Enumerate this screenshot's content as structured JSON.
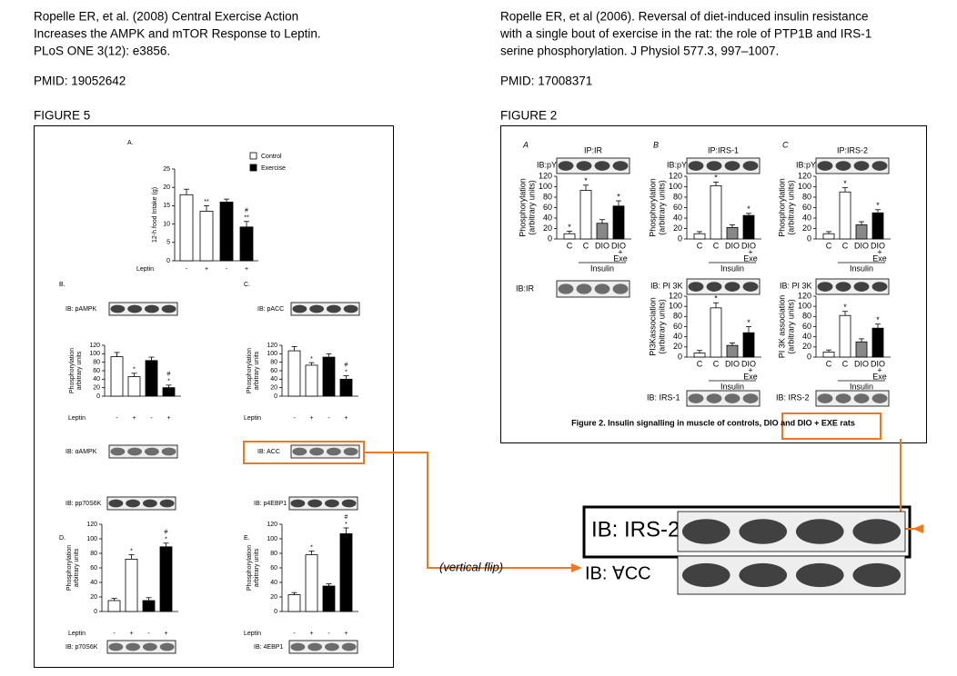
{
  "left": {
    "citation": [
      "Ropelle ER, et al. (2008) Central Exercise Action",
      "Increases the AMPK and mTOR Response to Leptin.",
      "PLoS ONE 3(12): e3856."
    ],
    "pmid": "PMID: 19052642",
    "figure": "FIGURE 5"
  },
  "right": {
    "citation": [
      "Ropelle ER, et al (2006). Reversal of diet-induced insulin resistance",
      "with a single bout of exercise in the rat: the role of PTP1B and IRS-1",
      "serine phosphorylation. J Physiol 577.3, 997–1007."
    ],
    "pmid": "PMID: 17008371",
    "figure": "FIGURE 2"
  },
  "figure5": {
    "legend": [
      {
        "name": "Control",
        "color": "#ffffff"
      },
      {
        "name": "Exercise",
        "color": "#000000"
      }
    ],
    "panels": [
      {
        "label": "A.",
        "chart": {
          "ylabel": [
            "12-h food Intake (g)"
          ],
          "ylim": [
            0,
            25
          ],
          "yticks": [
            0,
            5,
            10,
            15,
            20,
            25
          ],
          "values": [
            18,
            13.5,
            16,
            9.2
          ],
          "errors": [
            1.5,
            1.5,
            0.8,
            1.5
          ],
          "colors": [
            "#ffffff",
            "#ffffff",
            "#000000",
            "#000000"
          ],
          "annotations": [
            null,
            [
              "**"
            ],
            null,
            [
              "#",
              "**"
            ]
          ],
          "row_label": "Leptin",
          "row": [
            "-",
            "+",
            "-",
            "+"
          ]
        }
      },
      {
        "label": "B.",
        "blot_top": "IB: pAMPK",
        "blot_bottom": "IB: αAMPK",
        "chart": {
          "ylabel": [
            "Phosphorylation",
            "arbitrary units"
          ],
          "ylim": [
            0,
            120
          ],
          "yticks": [
            0,
            20,
            40,
            60,
            80,
            100,
            120
          ],
          "values": [
            93,
            46,
            84,
            20
          ],
          "errors": [
            10,
            8,
            8,
            6
          ],
          "colors": [
            "#ffffff",
            "#ffffff",
            "#000000",
            "#000000"
          ],
          "annotations": [
            null,
            [
              "*"
            ],
            null,
            [
              "#",
              "*"
            ]
          ],
          "row_label": "Leptin",
          "row": [
            "-",
            "+",
            "-",
            "+"
          ]
        }
      },
      {
        "label": "C.",
        "blot_top": "IB: pACC",
        "blot_bottom": "IB: ACC",
        "chart": {
          "ylabel": [
            "Phosphorylation",
            "arbitrary units"
          ],
          "ylim": [
            0,
            120
          ],
          "yticks": [
            0,
            20,
            40,
            60,
            80,
            100,
            120
          ],
          "values": [
            107,
            73,
            92,
            40
          ],
          "errors": [
            10,
            6,
            8,
            8
          ],
          "colors": [
            "#ffffff",
            "#ffffff",
            "#000000",
            "#000000"
          ],
          "annotations": [
            null,
            [
              "*"
            ],
            null,
            [
              "#",
              "*"
            ]
          ],
          "row_label": "Leptin",
          "row": [
            "-",
            "+",
            "-",
            "+"
          ]
        }
      },
      {
        "label": "D.",
        "blot_top": "IB: pp70S6K",
        "blot_bottom": "IB: p70S6K",
        "chart": {
          "ylabel": [
            "Phosphorylation",
            "arbitrary units"
          ],
          "ylim": [
            0,
            120
          ],
          "yticks": [
            0,
            20,
            40,
            60,
            80,
            100,
            120
          ],
          "values": [
            15,
            72,
            15,
            89
          ],
          "errors": [
            3,
            6,
            4,
            5
          ],
          "colors": [
            "#ffffff",
            "#ffffff",
            "#000000",
            "#000000"
          ],
          "annotations": [
            null,
            [
              "*"
            ],
            null,
            [
              "#",
              "*"
            ]
          ],
          "row_label": "Leptin",
          "row": [
            "-",
            "+",
            "-",
            "+"
          ]
        }
      },
      {
        "label": "E.",
        "blot_top": "IB: p4EBP1",
        "blot_bottom": "IB: 4EBP1",
        "chart": {
          "ylabel": [
            "Phosphorylation",
            "arbitrary units"
          ],
          "ylim": [
            0,
            120
          ],
          "yticks": [
            0,
            20,
            40,
            60,
            80,
            100,
            120
          ],
          "values": [
            23,
            78,
            35,
            107
          ],
          "errors": [
            3,
            5,
            3,
            8
          ],
          "colors": [
            "#ffffff",
            "#ffffff",
            "#000000",
            "#000000"
          ],
          "annotations": [
            null,
            [
              "*"
            ],
            null,
            [
              "#",
              "*"
            ]
          ],
          "row_label": "Leptin",
          "row": [
            "-",
            "+",
            "-",
            "+"
          ]
        }
      }
    ]
  },
  "figure2": {
    "caption": "Figure 2.  Insulin signalling in muscle of controls, DIO and DIO + EXE rats",
    "panels": [
      {
        "label": "A",
        "ip": "IP:IR",
        "blot_top": "IB:pY",
        "chart": {
          "ylabel": [
            "Phosphorylation",
            "(arbitrary units)"
          ],
          "ylim": [
            0,
            120
          ],
          "yticks": [
            0,
            20,
            40,
            60,
            80,
            100,
            120
          ],
          "values": [
            10,
            93,
            30,
            63
          ],
          "errors": [
            5,
            10,
            7,
            10
          ],
          "colors": [
            "#ffffff",
            "#ffffff",
            "#888888",
            "#000000"
          ],
          "annotations": [
            [
              "*"
            ],
            [
              "*"
            ],
            null,
            [
              "*"
            ]
          ],
          "categories": [
            [
              "C"
            ],
            [
              "C"
            ],
            [
              "DIO"
            ],
            [
              "DIO",
              "+",
              "Exe"
            ]
          ],
          "group_label": "Insulin"
        },
        "lower_blot": "IB:IR"
      },
      {
        "label": "B",
        "ip": "IP:IRS-1",
        "blot_top": "IB:pY",
        "chart": {
          "ylabel": [
            "Phosphorylation",
            "(arbitrary units)"
          ],
          "ylim": [
            0,
            120
          ],
          "yticks": [
            0,
            20,
            40,
            60,
            80,
            100,
            120
          ],
          "values": [
            10,
            102,
            22,
            45
          ],
          "errors": [
            4,
            7,
            5,
            4
          ],
          "colors": [
            "#ffffff",
            "#ffffff",
            "#888888",
            "#000000"
          ],
          "annotations": [
            null,
            [
              "*"
            ],
            null,
            [
              "*"
            ]
          ],
          "categories": [
            [
              "C"
            ],
            [
              "C"
            ],
            [
              "DIO"
            ],
            [
              "DIO",
              "+",
              "Exe"
            ]
          ],
          "group_label": "Insulin"
        },
        "lower": {
          "blot_top": "IB: PI 3K",
          "blot_bottom": "IB: IRS-1",
          "chart": {
            "ylabel": [
              "PI3Kassociation",
              "(arbitrary units)"
            ],
            "ylim": [
              0,
              120
            ],
            "yticks": [
              0,
              20,
              40,
              60,
              80,
              100,
              120
            ],
            "values": [
              8,
              97,
              23,
              48
            ],
            "errors": [
              5,
              10,
              5,
              12
            ],
            "colors": [
              "#ffffff",
              "#ffffff",
              "#888888",
              "#000000"
            ],
            "annotations": [
              null,
              [
                "*"
              ],
              null,
              [
                "*"
              ]
            ],
            "categories": [
              [
                "C"
              ],
              [
                "C"
              ],
              [
                "DIO"
              ],
              [
                "DIO",
                "+",
                "Exe"
              ]
            ],
            "group_label": "Insulin"
          }
        }
      },
      {
        "label": "C",
        "ip": "IP:IRS-2",
        "blot_top": "IB:pY",
        "chart": {
          "ylabel": [
            "Phosphorylation",
            "(arbitrary units)"
          ],
          "ylim": [
            0,
            120
          ],
          "yticks": [
            0,
            20,
            40,
            60,
            80,
            100,
            120
          ],
          "values": [
            10,
            90,
            27,
            50
          ],
          "errors": [
            4,
            8,
            6,
            6
          ],
          "colors": [
            "#ffffff",
            "#ffffff",
            "#888888",
            "#000000"
          ],
          "annotations": [
            null,
            [
              "*"
            ],
            null,
            [
              "*"
            ]
          ],
          "categories": [
            [
              "C"
            ],
            [
              "C"
            ],
            [
              "DIO"
            ],
            [
              "DIO",
              "+",
              "Exe"
            ]
          ],
          "group_label": "Insulin"
        },
        "lower": {
          "blot_top": "IB: PI 3K",
          "blot_bottom": "IB: IRS-2",
          "chart": {
            "ylabel": [
              "PI 3K association",
              "(arbitrary units)"
            ],
            "ylim": [
              0,
              120
            ],
            "yticks": [
              0,
              20,
              40,
              60,
              80,
              100,
              120
            ],
            "values": [
              10,
              82,
              30,
              57
            ],
            "errors": [
              4,
              8,
              6,
              8
            ],
            "colors": [
              "#ffffff",
              "#ffffff",
              "#888888",
              "#000000"
            ],
            "annotations": [
              null,
              [
                "*"
              ],
              null,
              [
                "*"
              ]
            ],
            "categories": [
              [
                "C"
              ],
              [
                "C"
              ],
              [
                "DIO"
              ],
              [
                "DIO",
                "+",
                "Exe"
              ]
            ],
            "group_label": "Insulin"
          }
        }
      }
    ]
  },
  "comparison": {
    "top": "IB: IRS-2",
    "bottom": "IB: ∀CC",
    "note": "(vertical flip)"
  }
}
